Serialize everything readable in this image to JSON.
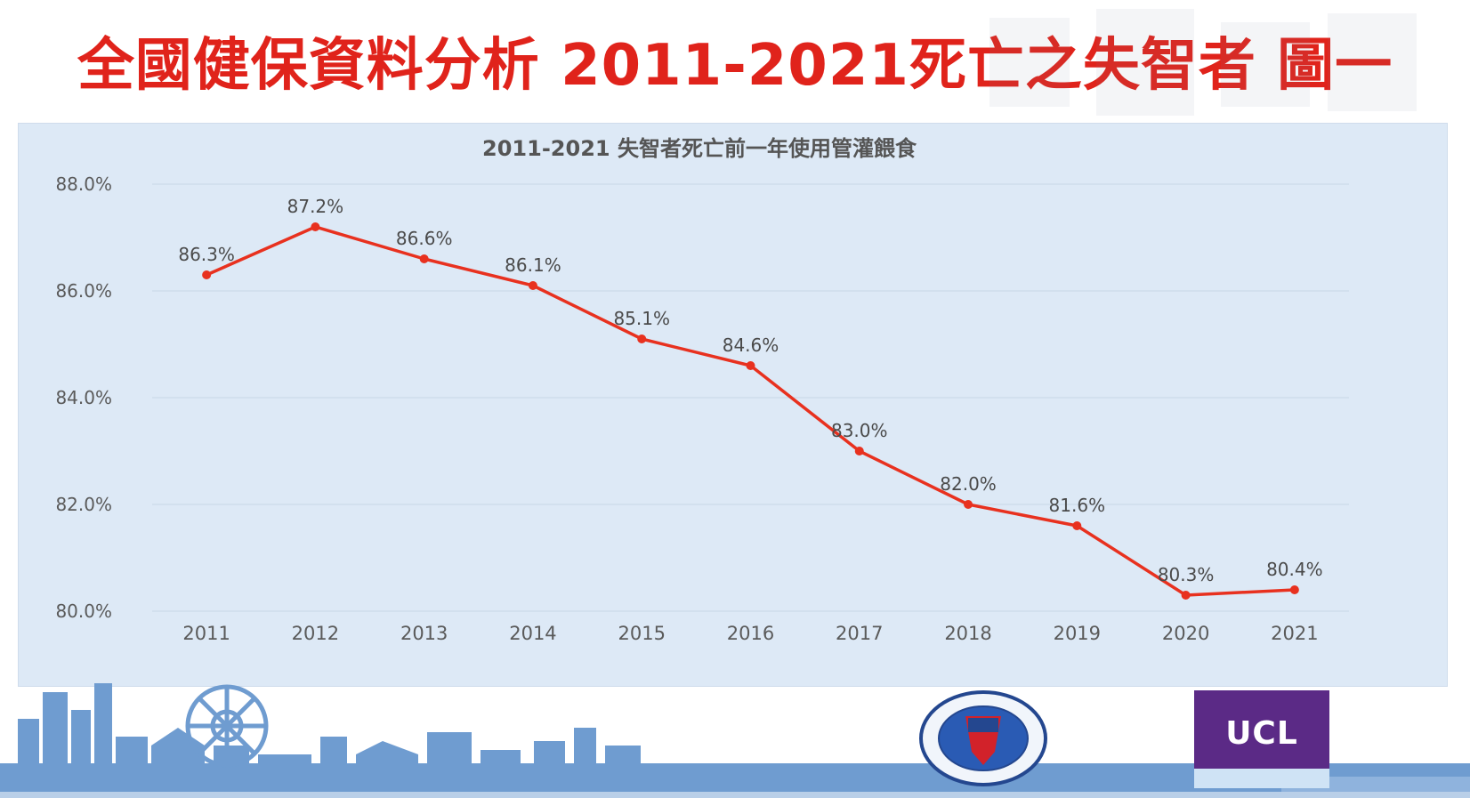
{
  "slide": {
    "title": "全國健保資料分析 2011-2021死亡之失智者 圖一"
  },
  "colors": {
    "title_red": "#e0231b",
    "line_red": "#e8311f",
    "panel_bg": "#dde9f6",
    "axis_text": "#5a5a5a",
    "skyline_blue": "#6f9cd0",
    "ucl_purple": "#5b2a86"
  },
  "logos": {
    "ucl_text": "UCL"
  },
  "chart_data": {
    "type": "line",
    "title": "2011-2021 失智者死亡前一年使用管灌餵食",
    "xlabel": "",
    "ylabel": "",
    "categories": [
      "2011",
      "2012",
      "2013",
      "2014",
      "2015",
      "2016",
      "2017",
      "2018",
      "2019",
      "2020",
      "2021"
    ],
    "values": [
      86.3,
      87.2,
      86.6,
      86.1,
      85.1,
      84.6,
      83.0,
      82.0,
      81.6,
      80.3,
      80.4
    ],
    "data_labels": [
      "86.3%",
      "87.2%",
      "86.6%",
      "86.1%",
      "85.1%",
      "84.6%",
      "83.0%",
      "82.0%",
      "81.6%",
      "80.3%",
      "80.4%"
    ],
    "ylim": [
      80,
      88
    ],
    "yticks": [
      80,
      82,
      84,
      86,
      88
    ],
    "ytick_labels": [
      "80.0%",
      "82.0%",
      "84.0%",
      "86.0%",
      "88.0%"
    ],
    "grid": true,
    "legend": "none"
  }
}
